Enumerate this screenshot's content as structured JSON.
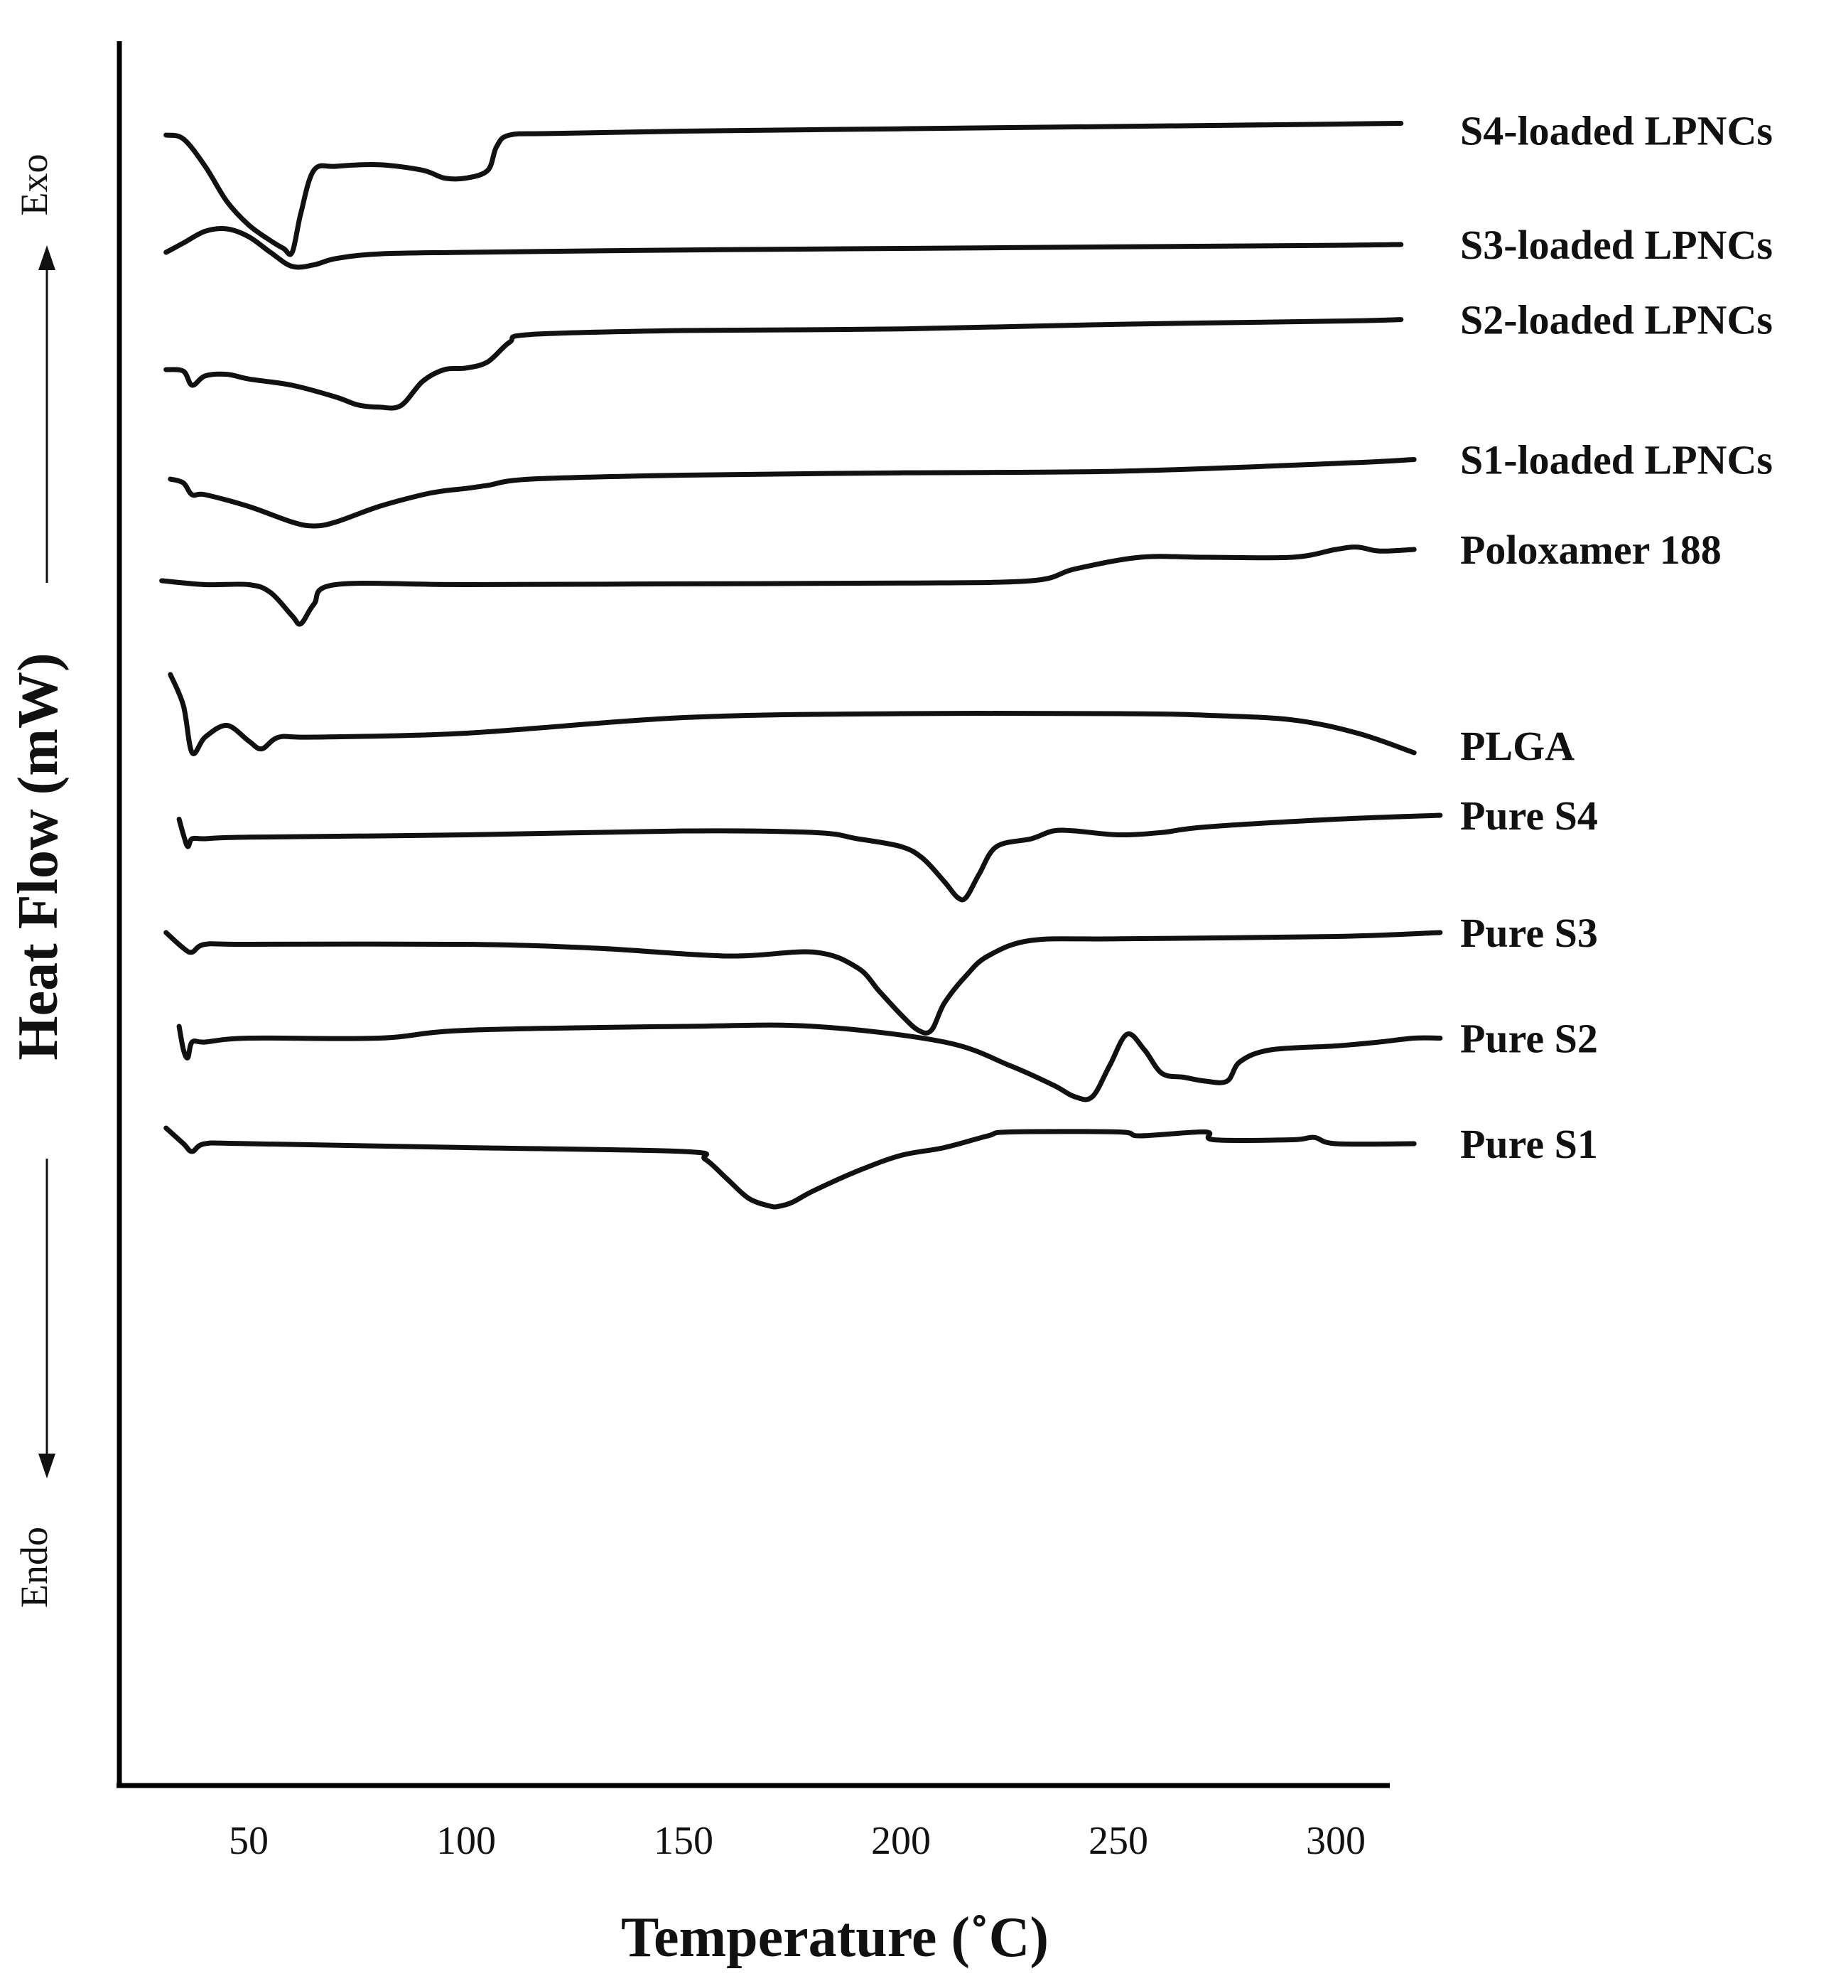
{
  "chart_data": {
    "type": "line",
    "title": "",
    "xlabel": "Temperature (˚C)",
    "ylabel": "Heat Flow (mW)",
    "direction_up": "Exo",
    "direction_down": "Endo",
    "xlim": [
      20,
      315
    ],
    "xticks": [
      50,
      100,
      150,
      200,
      250,
      300
    ],
    "y_units": "offset heat flow (arbitrary, curves stacked)",
    "series": [
      {
        "name": "S4-loaded LPNCs",
        "offset": 10.0,
        "x": [
          31,
          35,
          40,
          45,
          50,
          55,
          58,
          60,
          62,
          65,
          70,
          80,
          90,
          95,
          100,
          105,
          107,
          110,
          120,
          150,
          200,
          250,
          300,
          315
        ],
        "y": [
          0.0,
          -0.05,
          -0.4,
          -0.85,
          -1.15,
          -1.35,
          -1.45,
          -1.5,
          -1.0,
          -0.45,
          -0.4,
          -0.38,
          -0.45,
          -0.55,
          -0.55,
          -0.45,
          -0.15,
          0.0,
          0.02,
          0.05,
          0.08,
          0.11,
          0.14,
          0.15
        ]
      },
      {
        "name": "S3-loaded LPNCs",
        "offset": 8.5,
        "x": [
          31,
          35,
          40,
          45,
          50,
          55,
          60,
          65,
          70,
          80,
          100,
          150,
          200,
          250,
          300,
          315
        ],
        "y": [
          0.0,
          0.12,
          0.27,
          0.3,
          0.2,
          0.0,
          -0.18,
          -0.16,
          -0.08,
          -0.02,
          0.0,
          0.03,
          0.05,
          0.07,
          0.09,
          0.1
        ]
      },
      {
        "name": "S2-loaded LPNCs",
        "offset": 7.0,
        "x": [
          31,
          35,
          37,
          40,
          45,
          50,
          60,
          70,
          75,
          80,
          85,
          90,
          95,
          100,
          105,
          110,
          115,
          150,
          200,
          250,
          300,
          315
        ],
        "y": [
          0.0,
          -0.02,
          -0.2,
          -0.08,
          -0.06,
          -0.12,
          -0.2,
          -0.35,
          -0.45,
          -0.48,
          -0.46,
          -0.15,
          0.0,
          0.02,
          0.1,
          0.35,
          0.45,
          0.5,
          0.52,
          0.58,
          0.62,
          0.64
        ]
      },
      {
        "name": "S1-loaded LPNCs",
        "offset": 5.6,
        "x": [
          32,
          35,
          37,
          40,
          50,
          60,
          65,
          70,
          80,
          90,
          95,
          100,
          105,
          115,
          150,
          200,
          250,
          300,
          318
        ],
        "y": [
          0.0,
          -0.05,
          -0.2,
          -0.2,
          -0.35,
          -0.55,
          -0.6,
          -0.55,
          -0.35,
          -0.2,
          -0.15,
          -0.12,
          -0.08,
          0.0,
          0.05,
          0.08,
          0.1,
          0.2,
          0.25
        ]
      },
      {
        "name": "Poloxamer 188",
        "offset": 4.3,
        "x": [
          30,
          40,
          50,
          55,
          60,
          62,
          65,
          70,
          100,
          150,
          200,
          230,
          240,
          255,
          270,
          290,
          300,
          305,
          310,
          318
        ],
        "y": [
          0.0,
          -0.05,
          -0.05,
          -0.15,
          -0.45,
          -0.55,
          -0.3,
          -0.05,
          -0.05,
          -0.04,
          -0.03,
          0.0,
          0.15,
          0.3,
          0.3,
          0.3,
          0.4,
          0.43,
          0.38,
          0.4
        ]
      },
      {
        "name": "PLGA",
        "offset": 2.3,
        "x": [
          32,
          35,
          37,
          40,
          45,
          50,
          53,
          57,
          65,
          100,
          150,
          200,
          250,
          270,
          290,
          305,
          318
        ],
        "y": [
          0.8,
          0.4,
          -0.2,
          0.0,
          0.15,
          -0.05,
          -0.15,
          0.0,
          0.0,
          0.05,
          0.25,
          0.3,
          0.3,
          0.28,
          0.22,
          0.05,
          -0.2
        ]
      },
      {
        "name": "Pure S4",
        "offset": 1.0,
        "x": [
          34,
          35,
          36,
          37,
          40,
          50,
          100,
          150,
          180,
          190,
          200,
          205,
          210,
          213,
          215,
          218,
          222,
          230,
          235,
          240,
          250,
          260,
          270,
          300,
          324
        ],
        "y": [
          0.25,
          0.05,
          -0.1,
          0.0,
          0.0,
          0.02,
          0.05,
          0.1,
          0.08,
          0.0,
          -0.1,
          -0.25,
          -0.55,
          -0.75,
          -0.75,
          -0.45,
          -0.1,
          0.0,
          0.1,
          0.1,
          0.05,
          0.08,
          0.15,
          0.25,
          0.3
        ]
      },
      {
        "name": "Pure S3",
        "offset": -0.4,
        "x": [
          31,
          35,
          37,
          40,
          50,
          100,
          130,
          160,
          180,
          190,
          195,
          200,
          204,
          207,
          210,
          215,
          220,
          230,
          250,
          300,
          324
        ],
        "y": [
          0.2,
          0.0,
          -0.05,
          0.05,
          0.05,
          0.05,
          0.0,
          -0.1,
          -0.05,
          -0.25,
          -0.55,
          -0.85,
          -1.05,
          -1.05,
          -0.7,
          -0.35,
          -0.1,
          0.1,
          0.12,
          0.15,
          0.2
        ]
      },
      {
        "name": "Pure S2",
        "offset": -1.7,
        "x": [
          34,
          35,
          36,
          37,
          40,
          50,
          80,
          100,
          150,
          180,
          210,
          225,
          235,
          240,
          244,
          248,
          252,
          256,
          260,
          265,
          270,
          275,
          278,
          285,
          300,
          310,
          318,
          324
        ],
        "y": [
          0.3,
          0.0,
          -0.1,
          0.1,
          0.1,
          0.15,
          0.15,
          0.25,
          0.3,
          0.3,
          0.1,
          -0.2,
          -0.45,
          -0.6,
          -0.6,
          -0.2,
          0.2,
          0.0,
          -0.3,
          -0.35,
          -0.4,
          -0.4,
          -0.15,
          0.0,
          0.05,
          0.1,
          0.15,
          0.15
        ]
      },
      {
        "name": "Pure S1",
        "offset": -2.9,
        "x": [
          31,
          35,
          37,
          40,
          50,
          100,
          150,
          155,
          160,
          165,
          170,
          172,
          175,
          180,
          190,
          200,
          210,
          220,
          225,
          250,
          255,
          270,
          272,
          290,
          295,
          300,
          318
        ],
        "y": [
          0.2,
          0.0,
          -0.1,
          0.0,
          0.0,
          -0.05,
          -0.1,
          -0.2,
          -0.45,
          -0.7,
          -0.8,
          -0.8,
          -0.75,
          -0.6,
          -0.35,
          -0.15,
          -0.05,
          0.1,
          0.15,
          0.15,
          0.1,
          0.15,
          0.05,
          0.05,
          0.08,
          0.0,
          0.0
        ]
      }
    ]
  }
}
